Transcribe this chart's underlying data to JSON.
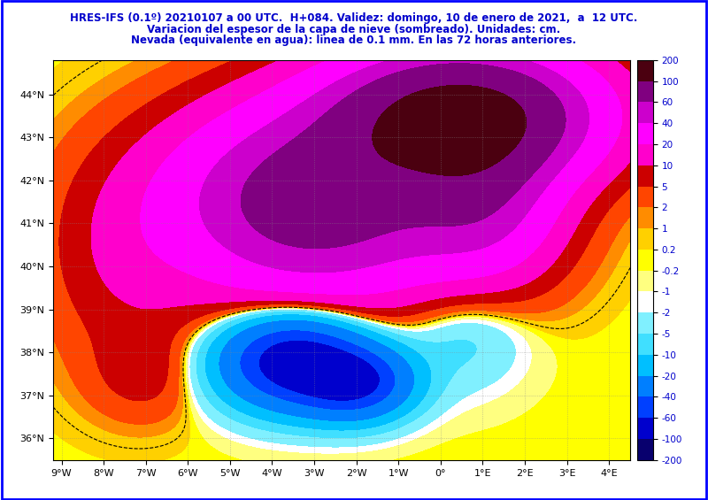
{
  "title_line1": "HRES-IFS (0.1º) 20210107 a 00 UTC.  H+084. Validez: domingo, 10 de enero de 2021,  a  12 UTC.",
  "title_line2": "Variacion del espesor de la capa de nieve (sombreado). Unidades: cm.",
  "title_line3": "Nevada (equivalente en agua): linea de 0.1 mm. En las 72 horas anteriores.",
  "title_color": "#0000cc",
  "background_color": "#ffffff",
  "border_color": "#0000ff",
  "map_background_ocean": "#ffffff",
  "map_background_land": "#ffffff",
  "xlim": [
    -9.2,
    4.5
  ],
  "ylim": [
    35.5,
    44.8
  ],
  "xlabel_ticks": [
    -9,
    -8,
    -7,
    -6,
    -5,
    -4,
    -3,
    -2,
    -1,
    0,
    1,
    2,
    3,
    4
  ],
  "ylabel_ticks": [
    36,
    37,
    38,
    39,
    40,
    41,
    42,
    43,
    44
  ],
  "colorbar_levels": [
    -200,
    -100,
    -60,
    -40,
    -20,
    -10,
    -5,
    -2,
    -1,
    -0.2,
    0.2,
    1,
    2,
    5,
    10,
    20,
    40,
    60,
    100,
    200
  ],
  "colorbar_colors": [
    "#08006e",
    "#0000cd",
    "#0040ff",
    "#007fff",
    "#00bfff",
    "#40dfff",
    "#80f0ff",
    "#ffffff",
    "#ffff80",
    "#ffff00",
    "#ffd000",
    "#ff8c00",
    "#ff4500",
    "#cc0000",
    "#ff00cc",
    "#ff00ff",
    "#cc00cc",
    "#800080",
    "#4b0010"
  ],
  "colorbar_tick_labels": [
    "-200",
    "-100",
    "-60",
    "-40",
    "-20",
    "-10",
    "-5",
    "-2",
    "-1",
    "-0.2",
    "0.2",
    "1",
    "2",
    "5",
    "10",
    "20",
    "40",
    "60",
    "100",
    "200"
  ],
  "font_size_title": 8.5,
  "font_size_ticks": 8,
  "font_size_colorbar": 7.5,
  "fig_width": 8.0,
  "fig_height": 5.65,
  "coast_color": "#000000",
  "country_border_color": "#8b0000",
  "province_border_color": "#8b0000",
  "isoline_color": "#000000",
  "dot_grid_color": "#888888",
  "snow_isoline_value": 0.1,
  "snow_isoline_style": "--",
  "lat_labels": [
    "36°N",
    "37°N",
    "38°N",
    "39°N",
    "40°N",
    "41°N",
    "42°N",
    "43°N",
    "44°N"
  ],
  "lon_labels": [
    "9°W",
    "8°W",
    "7°W",
    "6°W",
    "5°W",
    "4°W",
    "3°W",
    "2°W",
    "1°W",
    "0°",
    "1°E",
    "2°E",
    "3°E",
    "4°E"
  ]
}
